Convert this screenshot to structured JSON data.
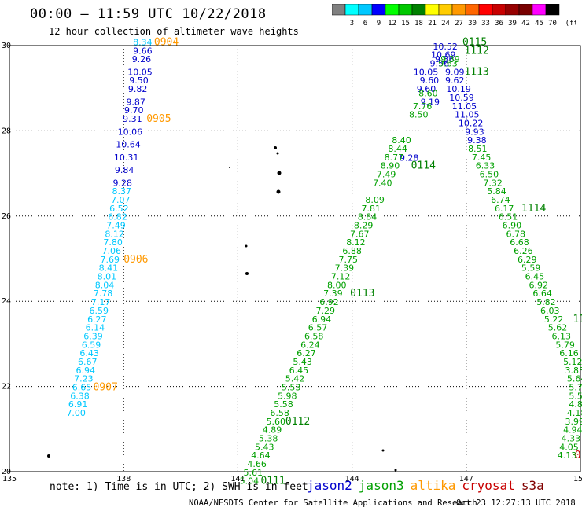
{
  "title": "00:00 – 11:59 UTC 10/22/2018",
  "subtitle": "12 hour collection of altimeter wave heights",
  "colorbar": {
    "labels": [
      "3",
      "6",
      "9",
      "12",
      "15",
      "18",
      "21",
      "24",
      "27",
      "30",
      "33",
      "36",
      "39",
      "42",
      "45",
      "70"
    ],
    "unit": "(ft)",
    "colors": [
      "#808080",
      "#00ffff",
      "#00c8ff",
      "#0000ff",
      "#00ff00",
      "#00c800",
      "#008000",
      "#ffff00",
      "#ffcc00",
      "#ff9900",
      "#ff6600",
      "#ff0000",
      "#c80000",
      "#960000",
      "#780000",
      "#ff00ff",
      "#000000"
    ]
  },
  "axes": {
    "x_ticks": [
      "135",
      "138",
      "141",
      "144",
      "147",
      "150"
    ],
    "y_ticks": [
      "20",
      "22",
      "24",
      "26",
      "28",
      "30"
    ],
    "xlim": [
      135,
      150
    ],
    "ylim": [
      20,
      30
    ]
  },
  "chart_data": {
    "type": "scatter",
    "series": [
      {
        "name": "jason2",
        "color": "#0000cc",
        "points": [
          {
            "lon": 138.5,
            "lat": 29.81,
            "v": "9.66"
          },
          {
            "lon": 138.47,
            "lat": 29.61,
            "v": "9.26"
          },
          {
            "lon": 138.43,
            "lat": 29.31,
            "v": "10.05"
          },
          {
            "lon": 138.4,
            "lat": 29.11,
            "v": "9.50"
          },
          {
            "lon": 138.37,
            "lat": 28.91,
            "v": "9.82"
          },
          {
            "lon": 138.32,
            "lat": 28.61,
            "v": "9.87"
          },
          {
            "lon": 138.27,
            "lat": 28.41,
            "v": "9.70"
          },
          {
            "lon": 138.23,
            "lat": 28.21,
            "v": "9.31"
          },
          {
            "lon": 138.17,
            "lat": 27.91,
            "v": "10.06"
          },
          {
            "lon": 138.12,
            "lat": 27.61,
            "v": "10.64"
          },
          {
            "lon": 138.07,
            "lat": 27.31,
            "v": "10.31"
          },
          {
            "lon": 138.02,
            "lat": 27.01,
            "v": "9.84"
          },
          {
            "lon": 137.97,
            "lat": 26.71,
            "v": "9.28"
          },
          {
            "lon": 145.5,
            "lat": 27.3,
            "v": "9.28"
          },
          {
            "lon": 145.94,
            "lat": 29.31,
            "v": "10.05"
          },
          {
            "lon": 146.03,
            "lat": 29.11,
            "v": "9.60"
          },
          {
            "lon": 145.95,
            "lat": 28.91,
            "v": "9.60"
          },
          {
            "lon": 146.05,
            "lat": 28.61,
            "v": "9.19"
          },
          {
            "lon": 146.43,
            "lat": 29.61,
            "v": "9.36"
          },
          {
            "lon": 146.3,
            "lat": 29.51,
            "v": "9.56"
          },
          {
            "lon": 146.45,
            "lat": 29.91,
            "v": "10.52"
          },
          {
            "lon": 146.4,
            "lat": 29.71,
            "v": "10.69"
          },
          {
            "lon": 146.7,
            "lat": 29.31,
            "v": "9.09"
          },
          {
            "lon": 146.7,
            "lat": 29.11,
            "v": "9.62"
          },
          {
            "lon": 146.8,
            "lat": 28.91,
            "v": "10.19"
          },
          {
            "lon": 146.88,
            "lat": 28.71,
            "v": "10.59"
          },
          {
            "lon": 146.95,
            "lat": 28.51,
            "v": "11.05"
          },
          {
            "lon": 147.02,
            "lat": 28.31,
            "v": "11.05"
          },
          {
            "lon": 147.12,
            "lat": 28.11,
            "v": "10.22"
          },
          {
            "lon": 147.22,
            "lat": 27.91,
            "v": "9.93"
          },
          {
            "lon": 147.28,
            "lat": 27.71,
            "v": "9.38"
          }
        ]
      },
      {
        "name": "jason3",
        "color": "#00a000",
        "points": [
          {
            "lon": 146.52,
            "lat": 29.51,
            "v": "9.63"
          },
          {
            "lon": 146.58,
            "lat": 29.61,
            "v": "9.39"
          },
          {
            "lon": 146.0,
            "lat": 28.81,
            "v": "8.60"
          },
          {
            "lon": 145.85,
            "lat": 28.51,
            "v": "7.76"
          },
          {
            "lon": 145.75,
            "lat": 28.31,
            "v": "8.50"
          },
          {
            "lon": 145.3,
            "lat": 27.71,
            "v": "8.40"
          },
          {
            "lon": 145.2,
            "lat": 27.51,
            "v": "8.44"
          },
          {
            "lon": 145.1,
            "lat": 27.31,
            "v": "8.77"
          },
          {
            "lon": 145.0,
            "lat": 27.11,
            "v": "8.90"
          },
          {
            "lon": 144.9,
            "lat": 26.91,
            "v": "7.49"
          },
          {
            "lon": 144.8,
            "lat": 26.71,
            "v": "7.40"
          },
          {
            "lon": 144.6,
            "lat": 26.31,
            "v": "8.09"
          },
          {
            "lon": 144.5,
            "lat": 26.11,
            "v": "7.81"
          },
          {
            "lon": 144.4,
            "lat": 25.91,
            "v": "8.84"
          },
          {
            "lon": 144.3,
            "lat": 25.71,
            "v": "8.29"
          },
          {
            "lon": 144.2,
            "lat": 25.51,
            "v": "7.67"
          },
          {
            "lon": 144.1,
            "lat": 25.31,
            "v": "8.12"
          },
          {
            "lon": 144.0,
            "lat": 25.11,
            "v": "6.88"
          },
          {
            "lon": 143.9,
            "lat": 24.91,
            "v": "7.75"
          },
          {
            "lon": 143.8,
            "lat": 24.71,
            "v": "7.39"
          },
          {
            "lon": 143.7,
            "lat": 24.51,
            "v": "7.12"
          },
          {
            "lon": 143.6,
            "lat": 24.31,
            "v": "8.00"
          },
          {
            "lon": 143.5,
            "lat": 24.11,
            "v": "7.39"
          },
          {
            "lon": 143.4,
            "lat": 23.91,
            "v": "6.92"
          },
          {
            "lon": 143.3,
            "lat": 23.71,
            "v": "7.29"
          },
          {
            "lon": 143.2,
            "lat": 23.51,
            "v": "6.94"
          },
          {
            "lon": 143.1,
            "lat": 23.31,
            "v": "6.57"
          },
          {
            "lon": 143.0,
            "lat": 23.11,
            "v": "6.58"
          },
          {
            "lon": 142.9,
            "lat": 22.91,
            "v": "6.24"
          },
          {
            "lon": 142.8,
            "lat": 22.71,
            "v": "6.27"
          },
          {
            "lon": 142.7,
            "lat": 22.51,
            "v": "5.43"
          },
          {
            "lon": 142.6,
            "lat": 22.31,
            "v": "6.45"
          },
          {
            "lon": 142.5,
            "lat": 22.11,
            "v": "5.42"
          },
          {
            "lon": 142.4,
            "lat": 21.91,
            "v": "5.53"
          },
          {
            "lon": 142.3,
            "lat": 21.71,
            "v": "5.98"
          },
          {
            "lon": 142.2,
            "lat": 21.51,
            "v": "5.58"
          },
          {
            "lon": 142.1,
            "lat": 21.31,
            "v": "6.58"
          },
          {
            "lon": 142.0,
            "lat": 21.11,
            "v": "5.60"
          },
          {
            "lon": 141.9,
            "lat": 20.91,
            "v": "4.89"
          },
          {
            "lon": 141.8,
            "lat": 20.71,
            "v": "5.38"
          },
          {
            "lon": 141.7,
            "lat": 20.51,
            "v": "5.43"
          },
          {
            "lon": 141.6,
            "lat": 20.31,
            "v": "4.64"
          },
          {
            "lon": 141.5,
            "lat": 20.11,
            "v": "4.66"
          },
          {
            "lon": 141.4,
            "lat": 19.91,
            "v": "5.61"
          },
          {
            "lon": 141.3,
            "lat": 19.71,
            "v": "5.04"
          },
          {
            "lon": 147.3,
            "lat": 27.51,
            "v": "8.51"
          },
          {
            "lon": 147.4,
            "lat": 27.31,
            "v": "7.45"
          },
          {
            "lon": 147.5,
            "lat": 27.11,
            "v": "6.33"
          },
          {
            "lon": 147.6,
            "lat": 26.91,
            "v": "6.50"
          },
          {
            "lon": 147.7,
            "lat": 26.71,
            "v": "7.32"
          },
          {
            "lon": 147.8,
            "lat": 26.51,
            "v": "5.84"
          },
          {
            "lon": 147.9,
            "lat": 26.31,
            "v": "6.74"
          },
          {
            "lon": 148.0,
            "lat": 26.11,
            "v": "6.17"
          },
          {
            "lon": 148.1,
            "lat": 25.91,
            "v": "6.51"
          },
          {
            "lon": 148.2,
            "lat": 25.71,
            "v": "6.90"
          },
          {
            "lon": 148.3,
            "lat": 25.51,
            "v": "6.78"
          },
          {
            "lon": 148.4,
            "lat": 25.31,
            "v": "6.68"
          },
          {
            "lon": 148.5,
            "lat": 25.11,
            "v": "6.26"
          },
          {
            "lon": 148.6,
            "lat": 24.91,
            "v": "6.29"
          },
          {
            "lon": 148.7,
            "lat": 24.71,
            "v": "5.59"
          },
          {
            "lon": 148.8,
            "lat": 24.51,
            "v": "6.45"
          },
          {
            "lon": 148.9,
            "lat": 24.31,
            "v": "6.92"
          },
          {
            "lon": 149.0,
            "lat": 24.11,
            "v": "6.64"
          },
          {
            "lon": 149.1,
            "lat": 23.91,
            "v": "5.82"
          },
          {
            "lon": 149.2,
            "lat": 23.71,
            "v": "6.03"
          },
          {
            "lon": 149.3,
            "lat": 23.51,
            "v": "5.22"
          },
          {
            "lon": 149.4,
            "lat": 23.31,
            "v": "5.62"
          },
          {
            "lon": 149.5,
            "lat": 23.11,
            "v": "6.13"
          },
          {
            "lon": 149.6,
            "lat": 22.91,
            "v": "5.79"
          },
          {
            "lon": 149.7,
            "lat": 22.71,
            "v": "6.16"
          },
          {
            "lon": 149.8,
            "lat": 22.51,
            "v": "5.12"
          },
          {
            "lon": 149.85,
            "lat": 22.31,
            "v": "3.83"
          },
          {
            "lon": 149.9,
            "lat": 22.11,
            "v": "5.64"
          },
          {
            "lon": 149.95,
            "lat": 21.91,
            "v": "5.78"
          },
          {
            "lon": 149.95,
            "lat": 21.71,
            "v": "5.55"
          },
          {
            "lon": 149.95,
            "lat": 21.51,
            "v": "4.86"
          },
          {
            "lon": 149.9,
            "lat": 21.31,
            "v": "4.18"
          },
          {
            "lon": 149.85,
            "lat": 21.11,
            "v": "3.99"
          },
          {
            "lon": 149.8,
            "lat": 20.91,
            "v": "4.94"
          },
          {
            "lon": 149.75,
            "lat": 20.71,
            "v": "4.33"
          },
          {
            "lon": 149.7,
            "lat": 20.51,
            "v": "4.05"
          },
          {
            "lon": 149.65,
            "lat": 20.31,
            "v": "4.13"
          }
        ]
      },
      {
        "name": "altika",
        "color": "#ff9900",
        "points": []
      },
      {
        "name": "cryosat",
        "color": "#c80000",
        "points": []
      },
      {
        "name": "s3a",
        "color": "#800000",
        "points": []
      },
      {
        "name": "cyan",
        "color": "#00c8ff",
        "points": [
          {
            "lon": 138.5,
            "lat": 30.01,
            "v": "8.34"
          },
          {
            "lon": 137.95,
            "lat": 26.51,
            "v": "8.37"
          },
          {
            "lon": 137.92,
            "lat": 26.31,
            "v": "7.07"
          },
          {
            "lon": 137.88,
            "lat": 26.11,
            "v": "6.52"
          },
          {
            "lon": 137.84,
            "lat": 25.91,
            "v": "6.82"
          },
          {
            "lon": 137.8,
            "lat": 25.71,
            "v": "7.49"
          },
          {
            "lon": 137.76,
            "lat": 25.51,
            "v": "8.12"
          },
          {
            "lon": 137.72,
            "lat": 25.31,
            "v": "7.80"
          },
          {
            "lon": 137.68,
            "lat": 25.11,
            "v": "7.06"
          },
          {
            "lon": 137.64,
            "lat": 24.91,
            "v": "7.69"
          },
          {
            "lon": 137.6,
            "lat": 24.71,
            "v": "8.41"
          },
          {
            "lon": 137.56,
            "lat": 24.51,
            "v": "8.01"
          },
          {
            "lon": 137.5,
            "lat": 24.31,
            "v": "8.04"
          },
          {
            "lon": 137.46,
            "lat": 24.11,
            "v": "7.78"
          },
          {
            "lon": 137.4,
            "lat": 23.91,
            "v": "7.17"
          },
          {
            "lon": 137.35,
            "lat": 23.71,
            "v": "6.59"
          },
          {
            "lon": 137.3,
            "lat": 23.51,
            "v": "6.27"
          },
          {
            "lon": 137.25,
            "lat": 23.31,
            "v": "6.14"
          },
          {
            "lon": 137.2,
            "lat": 23.11,
            "v": "6.39"
          },
          {
            "lon": 137.15,
            "lat": 22.91,
            "v": "6.59"
          },
          {
            "lon": 137.1,
            "lat": 22.71,
            "v": "6.43"
          },
          {
            "lon": 137.05,
            "lat": 22.51,
            "v": "6.67"
          },
          {
            "lon": 137.0,
            "lat": 22.31,
            "v": "6.94"
          },
          {
            "lon": 136.95,
            "lat": 22.11,
            "v": "7.23"
          },
          {
            "lon": 136.9,
            "lat": 21.91,
            "v": "6.65"
          },
          {
            "lon": 136.85,
            "lat": 21.71,
            "v": "6.38"
          },
          {
            "lon": 136.8,
            "lat": 21.51,
            "v": "6.91"
          },
          {
            "lon": 136.75,
            "lat": 21.31,
            "v": "7.00"
          }
        ]
      }
    ],
    "time_labels": [
      {
        "text": "0904",
        "color": "#ff9900",
        "lon": 138.8,
        "lat": 30.01
      },
      {
        "text": "0905",
        "color": "#ff9900",
        "lon": 138.6,
        "lat": 28.21
      },
      {
        "text": "0906",
        "color": "#ff9900",
        "lon": 138.0,
        "lat": 24.91
      },
      {
        "text": "0907",
        "color": "#ff9900",
        "lon": 137.2,
        "lat": 21.91
      },
      {
        "text": "0115",
        "color": "#008000",
        "lon": 146.9,
        "lat": 30.01
      },
      {
        "text": "1112",
        "color": "#008000",
        "lon": 146.95,
        "lat": 29.81
      },
      {
        "text": "1113",
        "color": "#008000",
        "lon": 146.95,
        "lat": 29.31
      },
      {
        "text": "0114",
        "color": "#008000",
        "lon": 145.55,
        "lat": 27.11
      },
      {
        "text": "1114",
        "color": "#008000",
        "lon": 148.45,
        "lat": 26.11
      },
      {
        "text": "0113",
        "color": "#008000",
        "lon": 143.95,
        "lat": 24.11
      },
      {
        "text": "0112",
        "color": "#008000",
        "lon": 142.25,
        "lat": 21.11
      },
      {
        "text": "0111",
        "color": "#008000",
        "lon": 141.6,
        "lat": 19.71
      },
      {
        "text": "11",
        "color": "#008000",
        "lon": 149.8,
        "lat": 23.51
      },
      {
        "text": "0",
        "color": "#c80000",
        "lon": 149.85,
        "lat": 20.31
      }
    ]
  },
  "footer": {
    "note": "note: 1) Time is in UTC; 2) SWH is in feet",
    "missions": [
      {
        "name": "jason2",
        "color": "#0000cc"
      },
      {
        "name": "jason3",
        "color": "#00a000"
      },
      {
        "name": "altika",
        "color": "#ff9900"
      },
      {
        "name": "cryosat",
        "color": "#c80000"
      },
      {
        "name": "s3a",
        "color": "#800000"
      }
    ],
    "credit": "NOAA/NESDIS Center for Satellite Applications and Research",
    "timestamp": "Oct 23 12:27:13 UTC 2018"
  }
}
